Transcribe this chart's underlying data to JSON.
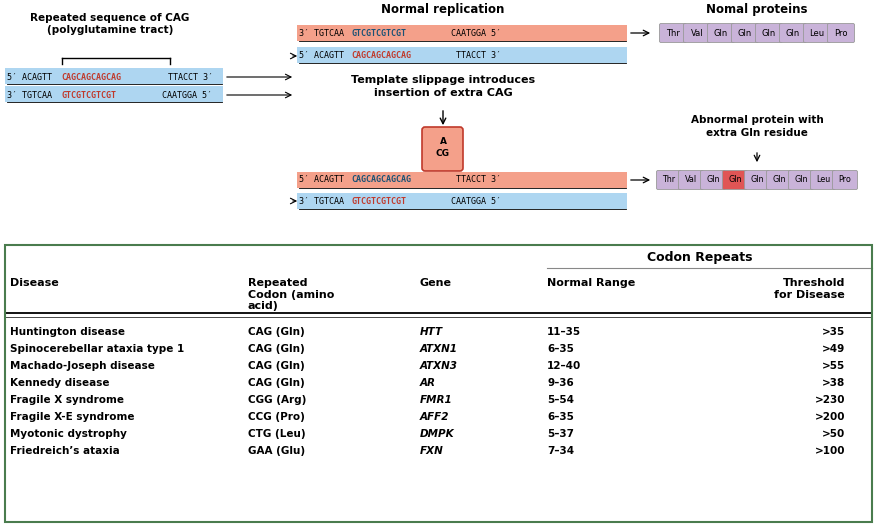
{
  "fig_width": 8.77,
  "fig_height": 5.28,
  "bg_color": "#ffffff",
  "table_border_color": "#4a7c4e",
  "salmon_color": "#f4a08a",
  "blue_color": "#aed6f1",
  "purple_color": "#c9b3d9",
  "red_highlight": "#e05555",
  "protein_labels_normal": [
    "Thr",
    "Val",
    "Gln",
    "Gln",
    "Gln",
    "Gln",
    "Leu",
    "Pro"
  ],
  "protein_labels_abnormal": [
    "Thr",
    "Val",
    "Gln",
    "Gln",
    "Gln",
    "Gln",
    "Gln",
    "Leu",
    "Pro"
  ],
  "protein_extra_idx": 3,
  "table_data": [
    [
      "Huntington disease",
      "CAG (Gln)",
      "HTT",
      "11–35",
      ">35"
    ],
    [
      "Spinocerebellar ataxia type 1",
      "CAG (Gln)",
      "ATXN1",
      "6–35",
      ">49"
    ],
    [
      "Machado-Joseph disease",
      "CAG (Gln)",
      "ATXN3",
      "12–40",
      ">55"
    ],
    [
      "Kennedy disease",
      "CAG (Gln)",
      "AR",
      "9–36",
      ">38"
    ],
    [
      "Fragile X syndrome",
      "CGG (Arg)",
      "FMR1",
      "5–54",
      ">230"
    ],
    [
      "Fragile X-E syndrome",
      "CCG (Pro)",
      "AFF2",
      "6–35",
      ">200"
    ],
    [
      "Myotonic dystrophy",
      "CTG (Leu)",
      "DMPK",
      "5–37",
      ">50"
    ],
    [
      "Friedreich’s ataxia",
      "GAA (Glu)",
      "FXN",
      "7–34",
      ">100"
    ]
  ]
}
